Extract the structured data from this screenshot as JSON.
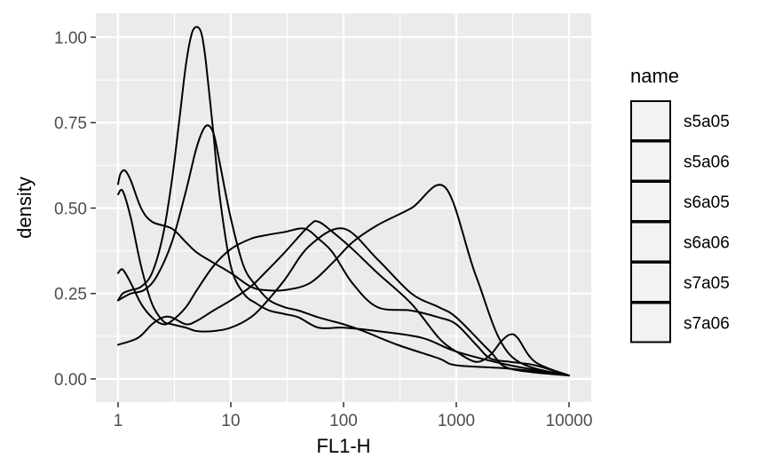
{
  "chart_data": {
    "type": "line",
    "subtype": "density",
    "title": "",
    "xlabel": "FL1-H",
    "ylabel": "density",
    "x_scale": "log10",
    "xlim": [
      1,
      10000
    ],
    "ylim": [
      0,
      1.07
    ],
    "x_ticks": [
      1,
      10,
      100,
      1000,
      10000
    ],
    "x_tick_labels": [
      "1",
      "10",
      "100",
      "1000",
      "10000"
    ],
    "y_ticks": [
      0,
      0.25,
      0.5,
      0.75,
      1.0
    ],
    "y_tick_labels": [
      "0.00",
      "0.25",
      "0.50",
      "0.75",
      "1.00"
    ],
    "grid": true,
    "panel_background": "#ebebeb",
    "line_color": "#000000",
    "legend": {
      "title": "name",
      "position": "right",
      "entries": [
        "s5a05",
        "s5a06",
        "s6a05",
        "s6a06",
        "s7a05",
        "s7a06"
      ]
    },
    "series": [
      {
        "x": [
          1,
          1.1,
          1.3,
          1.6,
          2,
          2.5,
          3,
          3.5,
          4,
          4.5,
          5,
          5.5,
          6,
          7,
          8,
          10,
          13,
          17,
          22,
          30,
          40,
          60,
          100,
          200,
          500,
          1000,
          3000,
          10000
        ],
        "y": [
          0.23,
          0.25,
          0.26,
          0.27,
          0.31,
          0.42,
          0.58,
          0.76,
          0.92,
          1.01,
          1.03,
          1.01,
          0.93,
          0.72,
          0.53,
          0.33,
          0.25,
          0.22,
          0.2,
          0.19,
          0.18,
          0.15,
          0.15,
          0.14,
          0.12,
          0.08,
          0.04,
          0.01
        ]
      },
      {
        "x": [
          1,
          1.3,
          1.7,
          2.2,
          3,
          4,
          5,
          6,
          7,
          8,
          10,
          13,
          17,
          22,
          30,
          40,
          60,
          100,
          150,
          300,
          700,
          1000,
          3000,
          10000
        ],
        "y": [
          0.23,
          0.25,
          0.26,
          0.3,
          0.4,
          0.55,
          0.68,
          0.74,
          0.72,
          0.63,
          0.47,
          0.33,
          0.27,
          0.23,
          0.21,
          0.2,
          0.18,
          0.16,
          0.14,
          0.1,
          0.06,
          0.04,
          0.03,
          0.01
        ]
      },
      {
        "x": [
          1,
          1.05,
          1.15,
          1.3,
          1.6,
          2,
          3,
          4,
          5,
          7,
          10,
          15,
          20,
          30,
          50,
          80,
          120,
          200,
          400,
          800,
          1500,
          3000,
          10000
        ],
        "y": [
          0.57,
          0.6,
          0.61,
          0.58,
          0.5,
          0.46,
          0.44,
          0.4,
          0.37,
          0.34,
          0.31,
          0.27,
          0.26,
          0.26,
          0.28,
          0.34,
          0.4,
          0.45,
          0.5,
          0.56,
          0.3,
          0.07,
          0.01
        ]
      },
      {
        "x": [
          1,
          1.1,
          1.3,
          1.6,
          2,
          2.5,
          3,
          4,
          5,
          7,
          10,
          15,
          20,
          30,
          50,
          100,
          200,
          400,
          700,
          1000,
          2000,
          3000,
          10000
        ],
        "y": [
          0.54,
          0.55,
          0.47,
          0.33,
          0.22,
          0.17,
          0.16,
          0.15,
          0.14,
          0.14,
          0.15,
          0.18,
          0.22,
          0.29,
          0.39,
          0.44,
          0.35,
          0.25,
          0.21,
          0.18,
          0.08,
          0.03,
          0.01
        ]
      },
      {
        "x": [
          1,
          1.1,
          1.3,
          1.6,
          2,
          2.5,
          3,
          4,
          5,
          7,
          10,
          15,
          20,
          30,
          45,
          60,
          80,
          120,
          200,
          400,
          700,
          1000,
          1500,
          2000,
          3000,
          5000,
          10000
        ],
        "y": [
          0.31,
          0.32,
          0.28,
          0.22,
          0.18,
          0.16,
          0.17,
          0.21,
          0.26,
          0.33,
          0.38,
          0.41,
          0.42,
          0.43,
          0.44,
          0.41,
          0.37,
          0.28,
          0.21,
          0.2,
          0.18,
          0.16,
          0.1,
          0.06,
          0.05,
          0.04,
          0.01
        ]
      },
      {
        "x": [
          1,
          1.5,
          2,
          2.5,
          3,
          4,
          5,
          7,
          10,
          15,
          20,
          30,
          50,
          60,
          80,
          120,
          200,
          400,
          700,
          1000,
          1500,
          2000,
          2500,
          3000,
          3500,
          5000,
          10000
        ],
        "y": [
          0.1,
          0.12,
          0.16,
          0.18,
          0.18,
          0.16,
          0.17,
          0.2,
          0.23,
          0.27,
          0.31,
          0.37,
          0.45,
          0.46,
          0.43,
          0.38,
          0.31,
          0.22,
          0.12,
          0.08,
          0.05,
          0.07,
          0.11,
          0.13,
          0.12,
          0.05,
          0.01
        ]
      }
    ]
  }
}
